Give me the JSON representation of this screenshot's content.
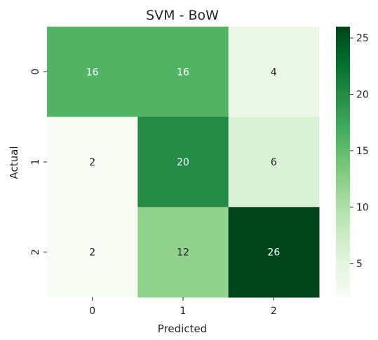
{
  "chart_data": {
    "type": "heatmap",
    "title": "SVM - BoW",
    "xlabel": "Predicted",
    "ylabel": "Actual",
    "x_categories": [
      "0",
      "1",
      "2"
    ],
    "y_categories": [
      "0",
      "1",
      "2"
    ],
    "values": [
      [
        16,
        16,
        4
      ],
      [
        2,
        20,
        6
      ],
      [
        2,
        12,
        26
      ]
    ],
    "colormap": "Greens",
    "colorbar": {
      "min": 2,
      "max": 26,
      "ticks": [
        5,
        10,
        15,
        20,
        25
      ]
    },
    "grid": false,
    "legend": "colorbar-right"
  }
}
